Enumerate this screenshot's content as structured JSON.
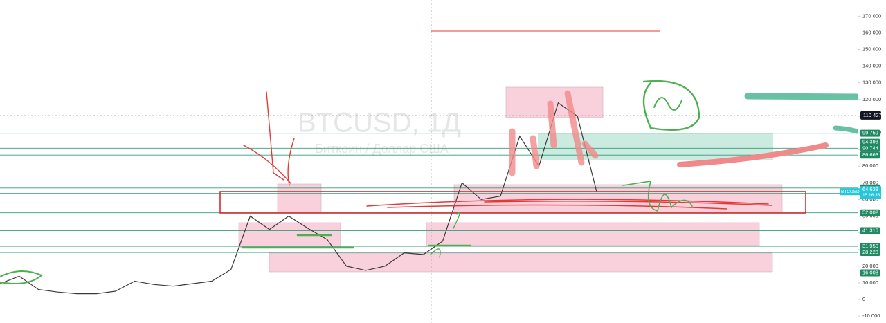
{
  "chart_data": {
    "type": "line",
    "title": "BTCUSD, 1Д",
    "subtitle": "Биткоин / Доллар США",
    "symbol": "BTCUSD",
    "color": "#3a3a3a",
    "categories": [
      null,
      null,
      null,
      null,
      null,
      null,
      null,
      null,
      null,
      null,
      null,
      null,
      null,
      null,
      null,
      null,
      null,
      null,
      null,
      null,
      null,
      null,
      null,
      null,
      null,
      null,
      null,
      null,
      null,
      null,
      null,
      null
    ],
    "values": [
      9500,
      14000,
      6000,
      4500,
      3500,
      3500,
      5000,
      11000,
      9000,
      8000,
      9500,
      11000,
      18000,
      50000,
      42000,
      50000,
      42700,
      36000,
      20000,
      17500,
      20000,
      28000,
      27000,
      35000,
      70000,
      60000,
      62000,
      98000,
      80000,
      118000,
      110000,
      64638
    ],
    "ylim": [
      -14100,
      179700
    ],
    "yticks": [
      {
        "value": -10000,
        "label": "-10 000"
      },
      0,
      {
        "value": 10000,
        "label": "10 000"
      },
      {
        "value": 20000,
        "label": "20 000"
      },
      {
        "value": 30000,
        "label": "30 000"
      },
      {
        "value": 40000,
        "label": "40 000"
      },
      {
        "value": 50000,
        "label": "50 000"
      },
      {
        "value": 60000,
        "label": "60 000"
      },
      {
        "value": 70000,
        "label": "70 000"
      },
      {
        "value": 80000,
        "label": "80 000"
      },
      {
        "value": 90000,
        "label": "90 000"
      },
      {
        "value": 100000,
        "label": "100 000"
      },
      {
        "value": 110000,
        "label": "110 000"
      },
      {
        "value": 120000,
        "label": "120 000"
      },
      {
        "value": 130000,
        "label": "130 000"
      },
      {
        "value": 140000,
        "label": "140 000"
      },
      {
        "value": 150000,
        "label": "150 000"
      },
      {
        "value": 160000,
        "label": "160 000"
      },
      {
        "value": 170000,
        "label": "170 000"
      }
    ],
    "levels": [
      {
        "value": 99759,
        "label": "99 759"
      },
      {
        "value": 94393,
        "label": "94 393"
      },
      {
        "value": 90744,
        "label": "90 744"
      },
      {
        "value": 86663,
        "label": "86 663"
      },
      {
        "value": 66910,
        "label": "66 910"
      },
      {
        "value": 63649,
        "label": "63 649"
      },
      {
        "value": 52002,
        "label": "52 002"
      },
      {
        "value": 41316,
        "label": "41 316"
      },
      {
        "value": 31950,
        "label": "31 950"
      },
      {
        "value": 28228,
        "label": "28 228"
      },
      {
        "value": 16008,
        "label": "16 008"
      }
    ],
    "last_price": {
      "value": 64638,
      "label": "64 638"
    },
    "countdown": "15:16:36",
    "crosshair": {
      "value": 110427,
      "label": "110 427"
    }
  }
}
